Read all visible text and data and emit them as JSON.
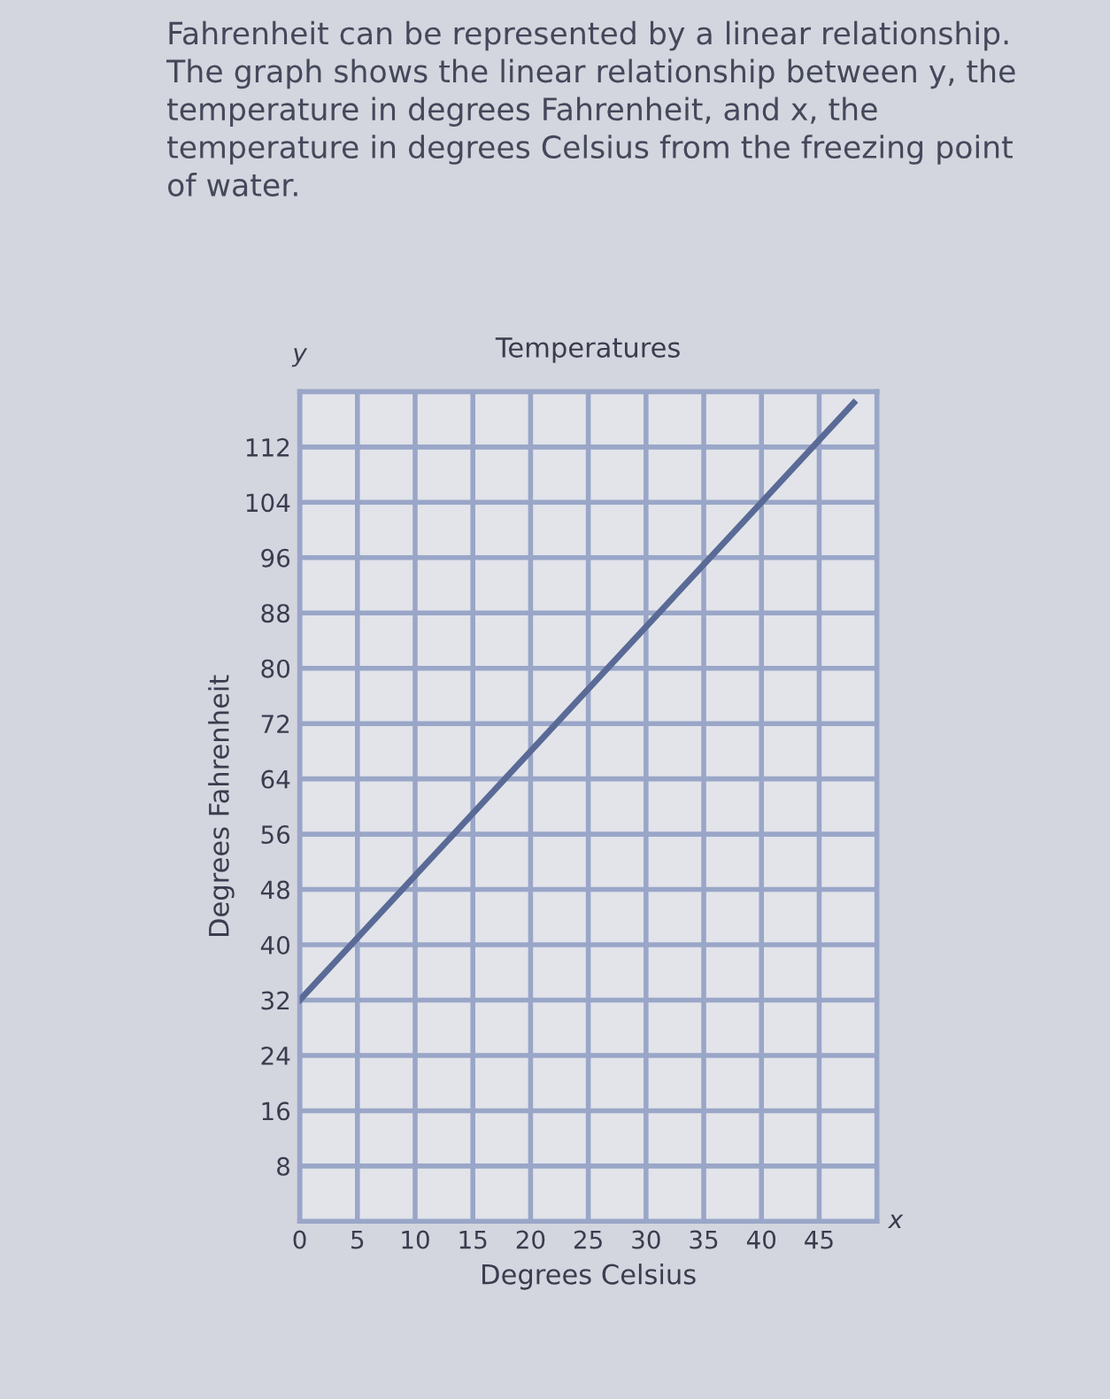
{
  "chart_data": {
    "type": "line",
    "title": "Temperatures",
    "subtitle": "Fahrenheit can be represented by a linear relationship.\nThe graph shows the linear relationship between y, the\ntemperature in degrees Fahrenheit, and x, the\ntemperature in degrees Celsius from the freezing point\nof water.",
    "xlabel": "Degrees Celsius",
    "ylabel": "Degrees Fahrenheit",
    "annotations": [
      "y",
      "x"
    ],
    "x": [
      0,
      10,
      20,
      30,
      40,
      48
    ],
    "series": [
      {
        "color": "#5a6a96",
        "values": [
          32,
          50,
          68,
          86,
          104,
          118.4
        ]
      }
    ],
    "xlim": [
      0,
      50
    ],
    "ylim": [
      0,
      120
    ],
    "xticks": [
      0,
      5,
      10,
      15,
      20,
      25,
      30,
      35,
      40,
      45
    ],
    "yticks": [
      8,
      16,
      24,
      32,
      40,
      48,
      56,
      64,
      72,
      80,
      88,
      96,
      104,
      112
    ],
    "grid": true,
    "legend": false,
    "marker": "none",
    "line_style": "solid"
  }
}
